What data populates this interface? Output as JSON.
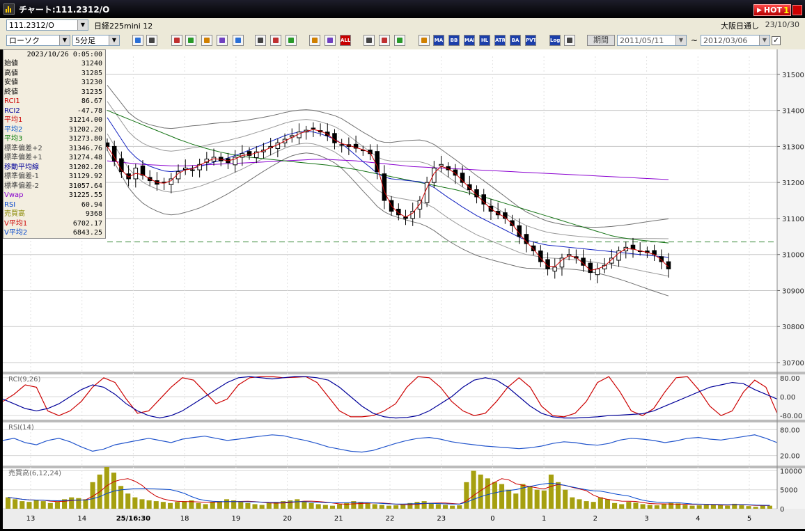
{
  "window": {
    "title": "チャート:111.2312/O",
    "hot_label": "HOT",
    "hot_num": "1"
  },
  "instrument": {
    "code": "111.2312/O",
    "name": "日経225mini 12",
    "market": "大阪日通し",
    "date": "23/10/30",
    "chart_type": "ローソク",
    "interval": "5分足"
  },
  "toolbar": {
    "buttons": [
      {
        "label": "",
        "icon": "zoom-icon"
      },
      {
        "label": "",
        "icon": "crosshair-icon"
      },
      {
        "label": "",
        "icon": "hand-icon"
      },
      {
        "label": "",
        "icon": "magnify-icon"
      },
      {
        "label": "",
        "icon": "bars-icon"
      },
      {
        "label": "",
        "icon": "line-icon"
      },
      {
        "label": "",
        "icon": "alert-icon"
      },
      {
        "label": "",
        "icon": "pen-icon"
      },
      {
        "label": "",
        "icon": "cursor-icon"
      },
      {
        "label": "",
        "icon": "undo-icon"
      },
      {
        "label": "",
        "icon": "candle-icon"
      },
      {
        "label": "",
        "icon": "candle2-icon"
      },
      {
        "label": "ALL",
        "icon": "all-icon"
      },
      {
        "label": "",
        "icon": "gear-icon"
      },
      {
        "label": "",
        "icon": "wrench-icon"
      },
      {
        "label": "",
        "icon": "palette-icon"
      },
      {
        "label": "",
        "icon": "grid-icon"
      },
      {
        "label": "MA",
        "icon": "ma-icon"
      },
      {
        "label": "BB",
        "icon": "bb-icon"
      },
      {
        "label": "MAE",
        "icon": "mae-icon"
      },
      {
        "label": "HL",
        "icon": "hl-icon"
      },
      {
        "label": "ATR",
        "icon": "atr-icon"
      },
      {
        "label": "BA",
        "icon": "ba-icon"
      },
      {
        "label": "PVT",
        "icon": "pvt-icon"
      },
      {
        "label": "Log",
        "icon": "log-icon"
      },
      {
        "label": "",
        "icon": "export-icon"
      }
    ],
    "period_label": "期間",
    "date_from": "2011/05/11",
    "date_to": "2012/03/06",
    "tilde": "~",
    "check": "✓"
  },
  "info_panel": {
    "timestamp": "2023/10/26 0:05:00",
    "rows": [
      {
        "label": "始値",
        "value": "31240",
        "color": "#000000"
      },
      {
        "label": "高値",
        "value": "31285",
        "color": "#000000"
      },
      {
        "label": "安値",
        "value": "31230",
        "color": "#000000"
      },
      {
        "label": "終値",
        "value": "31235",
        "color": "#000000"
      },
      {
        "label": "RCI1",
        "value": "86.67",
        "color": "#cc0000"
      },
      {
        "label": "RCI2",
        "value": "-47.78",
        "color": "#000099"
      },
      {
        "label": "平均1",
        "value": "31214.00",
        "color": "#cc0000"
      },
      {
        "label": "平均2",
        "value": "31202.20",
        "color": "#0055cc"
      },
      {
        "label": "平均3",
        "value": "31273.80",
        "color": "#007700"
      },
      {
        "label": "標準偏差+2",
        "value": "31346.76",
        "color": "#444444"
      },
      {
        "label": "標準偏差+1",
        "value": "31274.48",
        "color": "#444444"
      },
      {
        "label": "移動平均線",
        "value": "31202.20",
        "color": "#000099"
      },
      {
        "label": "標準偏差-1",
        "value": "31129.92",
        "color": "#444444"
      },
      {
        "label": "標準偏差-2",
        "value": "31057.64",
        "color": "#444444"
      },
      {
        "label": "Vwap",
        "value": "31225.55",
        "color": "#8800cc"
      },
      {
        "label": "RSI",
        "value": "60.94",
        "color": "#0044cc"
      },
      {
        "label": "売買高",
        "value": "9368",
        "color": "#888800"
      },
      {
        "label": "V平均1",
        "value": "6702.17",
        "color": "#cc0000"
      },
      {
        "label": "V平均2",
        "value": "6843.25",
        "color": "#0044cc"
      }
    ]
  },
  "chart_data": [
    {
      "type": "candlestick",
      "panel": "price",
      "ylim": [
        30700,
        31550
      ],
      "y_ticks": [
        "31500",
        "31400",
        "31300",
        "31200",
        "31100",
        "31000",
        "30900",
        "30800",
        "30700"
      ],
      "x_ticks": [
        "13",
        "14",
        "25/16:30",
        "18",
        "19",
        "20",
        "21",
        "22",
        "23",
        "0",
        "1",
        "2",
        "3",
        "4",
        "5"
      ],
      "dashed_level": 31035,
      "close": [
        31300,
        31260,
        31230,
        31210,
        31240,
        31220,
        31205,
        31195,
        31200,
        31210,
        31230,
        31240,
        31235,
        31250,
        31265,
        31270,
        31260,
        31255,
        31270,
        31280,
        31275,
        31285,
        31290,
        31300,
        31310,
        31320,
        31330,
        31340,
        31345,
        31350,
        31340,
        31330,
        31310,
        31305,
        31300,
        31295,
        31290,
        31280,
        31230,
        31150,
        31120,
        31110,
        31100,
        31120,
        31150,
        31200,
        31240,
        31250,
        31235,
        31220,
        31200,
        31180,
        31160,
        31140,
        31120,
        31110,
        31100,
        31080,
        31050,
        31030,
        31010,
        30980,
        30960,
        30965,
        30990,
        31000,
        30990,
        30970,
        30950,
        30960,
        30970,
        30990,
        31010,
        31020,
        31015,
        31010,
        31005,
        31000,
        30980,
        30960
      ],
      "ma1": [
        31300,
        31270,
        31235,
        31215,
        31225,
        31222,
        31210,
        31200,
        31198,
        31205,
        31225,
        31235,
        31238,
        31248,
        31258,
        31266,
        31264,
        31260,
        31265,
        31275,
        31277,
        31282,
        31288,
        31297,
        31305,
        31315,
        31325,
        31335,
        31342,
        31347,
        31343,
        31334,
        31318,
        31308,
        31303,
        31297,
        31291,
        31283,
        31245,
        31175,
        31135,
        31115,
        31104,
        31115,
        31140,
        31185,
        31225,
        31245,
        31238,
        31225,
        31205,
        31185,
        31165,
        31146,
        31127,
        31114,
        31103,
        31085,
        31058,
        31035,
        31015,
        30990,
        30968,
        30966,
        30985,
        30997,
        30992,
        30975,
        30956,
        30960,
        30968,
        30986,
        31004,
        31016,
        31015,
        31010,
        31006,
        31000,
        30985,
        30965
      ],
      "ma2": [
        31380,
        31350,
        31320,
        31290,
        31270,
        31255,
        31245,
        31238,
        31232,
        31230,
        31232,
        31236,
        31240,
        31244,
        31250,
        31256,
        31262,
        31268,
        31275,
        31282,
        31290,
        31298,
        31306,
        31314,
        31322,
        31330,
        31336,
        31340,
        31342,
        31340,
        31335,
        31328,
        31320,
        31308,
        31292,
        31275,
        31258,
        31242,
        31225,
        31215,
        31210,
        31208,
        31206,
        31204,
        31202,
        31196,
        31186,
        31172,
        31158,
        31145,
        31132,
        31120,
        31108,
        31098,
        31088,
        31078,
        31068,
        31058,
        31048,
        31040,
        31035,
        31030,
        31026,
        31024,
        31022,
        31020,
        31018,
        31016,
        31014,
        31012,
        31010,
        31008,
        31006,
        31004,
        31002,
        31000,
        30998,
        30996,
        30994,
        30992
      ],
      "ma3": [
        31400,
        31392,
        31384,
        31376,
        31368,
        31360,
        31352,
        31344,
        31336,
        31328,
        31320,
        31313,
        31306,
        31300,
        31294,
        31289,
        31284,
        31280,
        31276,
        31272,
        31270,
        31268,
        31266,
        31264,
        31262,
        31260,
        31258,
        31256,
        31254,
        31252,
        31250,
        31248,
        31245,
        31242,
        31239,
        31236,
        31232,
        31228,
        31224,
        31220,
        31216,
        31212,
        31208,
        31204,
        31200,
        31196,
        31192,
        31188,
        31184,
        31180,
        31175,
        31170,
        31165,
        31160,
        31154,
        31148,
        31142,
        31136,
        31130,
        31124,
        31118,
        31112,
        31106,
        31100,
        31094,
        31088,
        31082,
        31076,
        31070,
        31064,
        31058,
        31052,
        31048,
        31045,
        31042,
        31040,
        31038,
        31036,
        31034,
        31032
      ],
      "vwap": [
        31260,
        31258,
        31256,
        31254,
        31252,
        31250,
        31249,
        31248,
        31247,
        31246,
        31246,
        31246,
        31247,
        31248,
        31249,
        31250,
        31251,
        31252,
        31253,
        31254,
        31255,
        31256,
        31257,
        31258,
        31259,
        31260,
        31261,
        31262,
        31263,
        31264,
        31264,
        31264,
        31263,
        31262,
        31261,
        31260,
        31258,
        31256,
        31254,
        31252,
        31250,
        31248,
        31246,
        31244,
        31243,
        31242,
        31241,
        31240,
        31239,
        31238,
        31237,
        31236,
        31235,
        31234,
        31233,
        31232,
        31231,
        31230,
        31229,
        31228,
        31227,
        31226,
        31225,
        31224,
        31223,
        31222,
        31221,
        31220,
        31219,
        31218,
        31217,
        31216,
        31215,
        31214,
        31213,
        31212,
        31211,
        31210,
        31209,
        31208
      ]
    },
    {
      "type": "line",
      "panel": "rci",
      "title": "RCI(9,26)",
      "ylim": [
        -100,
        100
      ],
      "y_ticks": [
        "80.00",
        "0.00",
        "-80.00"
      ],
      "series": [
        {
          "name": "RCI1",
          "color": "#cc0000",
          "values": [
            -20,
            10,
            50,
            40,
            -60,
            -80,
            -60,
            -20,
            40,
            80,
            60,
            -10,
            -70,
            -60,
            -10,
            40,
            80,
            70,
            20,
            -30,
            -10,
            50,
            80,
            85,
            85,
            80,
            82,
            85,
            60,
            0,
            -60,
            -85,
            -85,
            -80,
            -60,
            -30,
            40,
            85,
            80,
            40,
            -20,
            -60,
            -80,
            -70,
            -20,
            40,
            80,
            40,
            -40,
            -80,
            -85,
            -70,
            -20,
            60,
            85,
            20,
            -60,
            -80,
            -50,
            20,
            80,
            85,
            30,
            -40,
            -80,
            -60,
            20,
            70,
            40,
            -70
          ]
        },
        {
          "name": "RCI2",
          "color": "#000099",
          "values": [
            -10,
            -30,
            -50,
            -60,
            -50,
            -30,
            0,
            30,
            50,
            40,
            10,
            -30,
            -60,
            -80,
            -90,
            -80,
            -60,
            -30,
            0,
            30,
            60,
            80,
            85,
            80,
            75,
            80,
            85,
            85,
            80,
            70,
            40,
            0,
            -40,
            -70,
            -85,
            -90,
            -88,
            -80,
            -60,
            -30,
            0,
            40,
            70,
            80,
            70,
            40,
            0,
            -40,
            -70,
            -85,
            -90,
            -90,
            -88,
            -85,
            -80,
            -78,
            -75,
            -72,
            -60,
            -40,
            -20,
            0,
            20,
            40,
            50,
            60,
            55,
            30,
            10,
            -10
          ]
        }
      ]
    },
    {
      "type": "line",
      "panel": "rsi",
      "title": "RSI(14)",
      "ylim": [
        0,
        100
      ],
      "y_ticks": [
        "80.00",
        "20.00"
      ],
      "series": [
        {
          "name": "RSI",
          "color": "#2255cc",
          "values": [
            55,
            60,
            50,
            45,
            55,
            60,
            52,
            40,
            30,
            35,
            45,
            50,
            55,
            60,
            55,
            50,
            58,
            62,
            65,
            60,
            55,
            58,
            62,
            65,
            68,
            66,
            60,
            55,
            48,
            40,
            35,
            30,
            28,
            32,
            40,
            48,
            55,
            60,
            62,
            58,
            52,
            48,
            45,
            42,
            40,
            38,
            36,
            38,
            42,
            48,
            52,
            50,
            46,
            44,
            48,
            56,
            60,
            58,
            55,
            50,
            54,
            60,
            62,
            58,
            56,
            60,
            64,
            68,
            60,
            50
          ]
        }
      ]
    },
    {
      "type": "bar",
      "panel": "volume",
      "title": "売買高(6,12,24)",
      "ylim": [
        0,
        11000
      ],
      "y_ticks": [
        "10000",
        "5000",
        "0"
      ],
      "values": [
        3000,
        2500,
        2000,
        1800,
        2200,
        2000,
        1500,
        1800,
        2500,
        3000,
        2800,
        2500,
        7000,
        9000,
        12000,
        9500,
        6000,
        4000,
        3000,
        2500,
        2200,
        2000,
        1800,
        1500,
        1800,
        2000,
        2200,
        1500,
        1200,
        1800,
        2000,
        2500,
        2200,
        1800,
        1500,
        1200,
        1000,
        1500,
        1800,
        2000,
        2200,
        2500,
        2000,
        1500,
        1200,
        1000,
        800,
        1200,
        1500,
        2000,
        1800,
        1500,
        1200,
        1000,
        800,
        900,
        1100,
        1500,
        1800,
        2000,
        1500,
        1200,
        1000,
        800,
        900,
        7000,
        10000,
        9000,
        8000,
        7000,
        6500,
        5000,
        4000,
        6500,
        6000,
        5000,
        4800,
        9000,
        7000,
        5000,
        3000,
        2500,
        2000,
        1800,
        3000,
        2500,
        1500,
        1200,
        1800,
        1600,
        1200,
        1000,
        900,
        1200,
        1600,
        1400,
        1000,
        800,
        900,
        1000,
        1200,
        1000,
        800,
        1300,
        900,
        700,
        500,
        900,
        800
      ],
      "ma_series": [
        {
          "name": "V平均1",
          "color": "#cc0000"
        },
        {
          "name": "V平均2",
          "color": "#0044cc"
        }
      ]
    }
  ]
}
